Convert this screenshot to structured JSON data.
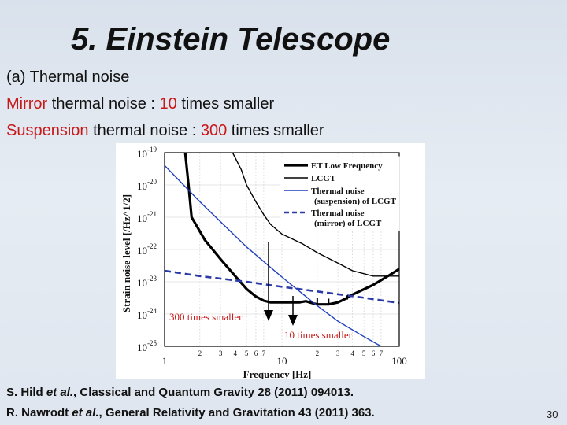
{
  "slide": {
    "title": "5. Einstein Telescope",
    "subtitle": "(a) Thermal noise",
    "line2": {
      "part1": "Mirror",
      "part2": " thermal noise : ",
      "part3": "10",
      "part4": " times smaller"
    },
    "line3": {
      "part1": "Suspension",
      "part2": " thermal noise : ",
      "part3": "300",
      "part4": " times smaller"
    },
    "ref1": {
      "a": "S. Hild ",
      "b": "et al.",
      "c": ", Classical and Quantum Gravity 28 (2011) 094013."
    },
    "ref2": {
      "a": "R. Nawrodt ",
      "b": "et al.",
      "c": ", General Relativity and Gravitation 43 (2011) 363."
    },
    "page_number": "30",
    "colors": {
      "accent_red": "#c81818",
      "thermal_blue": "#1f3fbf",
      "dashed_blue": "#2a3aa8"
    }
  },
  "chart_data": {
    "type": "line",
    "xlabel": "Frequency [Hz]",
    "ylabel": "Strain noise level [/Hz^1/2]",
    "xscale": "log",
    "yscale": "log",
    "xlim": [
      1,
      100
    ],
    "ylim": [
      1e-25,
      1e-19
    ],
    "x_tick_labels": [
      "1",
      "2",
      "3",
      "4",
      "5",
      "6",
      "7",
      "10",
      "2",
      "3",
      "4",
      "5",
      "6",
      "7",
      "100"
    ],
    "y_tick_labels": [
      {
        "base": "10",
        "exp": "-19"
      },
      {
        "base": "10",
        "exp": "-20"
      },
      {
        "base": "10",
        "exp": "-21"
      },
      {
        "base": "10",
        "exp": "-22"
      },
      {
        "base": "10",
        "exp": "-23"
      },
      {
        "base": "10",
        "exp": "-24"
      },
      {
        "base": "10",
        "exp": "-25"
      }
    ],
    "series": [
      {
        "name": "ET Low Frequency",
        "color": "#000000",
        "style": "solid-thick",
        "x": [
          1.5,
          1.6,
          1.7,
          1.9,
          2.2,
          3,
          4,
          5,
          6,
          7,
          8,
          10,
          12,
          14,
          16,
          18,
          20,
          22,
          25,
          30,
          35,
          40,
          60,
          80,
          100
        ],
        "y": [
          1e-19,
          1e-20,
          1e-21,
          5e-22,
          2e-22,
          5e-23,
          1.5e-23,
          6e-24,
          3.5e-24,
          2.6e-24,
          2.3e-24,
          2.3e-24,
          2.3e-24,
          2.3e-24,
          2.5e-24,
          2.2e-24,
          2e-24,
          2e-24,
          2e-24,
          2.3e-24,
          3e-24,
          4e-24,
          8e-24,
          1.5e-23,
          2.5e-23
        ]
      },
      {
        "name": "LCGT",
        "color": "#000000",
        "style": "solid",
        "x": [
          3.8,
          4.5,
          5,
          6,
          7,
          8,
          10,
          15,
          20,
          30,
          40,
          60,
          80,
          100
        ],
        "y": [
          1e-19,
          3e-20,
          1e-20,
          3e-21,
          1.2e-21,
          6e-22,
          3e-22,
          1.5e-22,
          8e-23,
          3.8e-23,
          2.2e-23,
          1.5e-23,
          1.5e-23,
          1.5e-23
        ]
      },
      {
        "name": "Thermal noise (suspension) of LCGT",
        "color": "#1f3fbf",
        "style": "solid",
        "x": [
          1,
          2,
          5,
          10,
          20,
          30,
          50,
          70,
          100
        ],
        "y": [
          4e-20,
          3e-21,
          1.2e-22,
          1.4e-23,
          1.8e-24,
          6e-25,
          2e-25,
          1e-25,
          6e-26
        ]
      },
      {
        "name": "Thermal noise (mirror) of LCGT",
        "color": "#2a3aa8",
        "style": "dashed-thick",
        "x": [
          1,
          2,
          5,
          10,
          20,
          50,
          100
        ],
        "y": [
          2.2e-23,
          1.5e-23,
          1e-23,
          7e-24,
          5e-24,
          3.2e-24,
          2.2e-24
        ]
      }
    ],
    "legend_position": "top-right",
    "annotations": [
      {
        "text": "300 times smaller",
        "color": "#c81818"
      },
      {
        "text": "10 times smaller",
        "color": "#c81818"
      }
    ]
  }
}
